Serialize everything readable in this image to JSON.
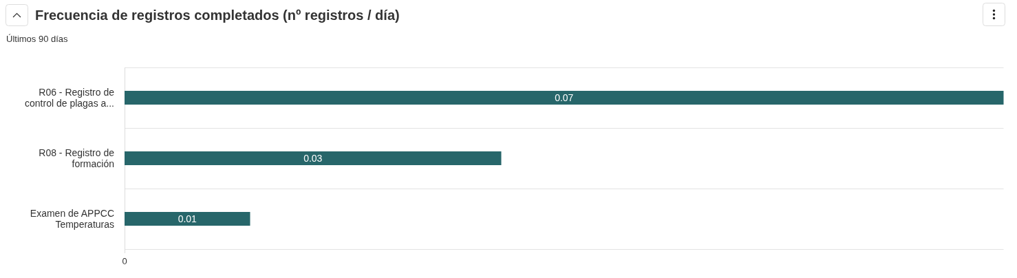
{
  "chart_data": {
    "type": "bar",
    "title": "Frecuencia de registros completados (nº registros / día)",
    "subtitle": "Últimos 90 días",
    "orientation": "horizontal",
    "categories": [
      "R06 - Registro de control de plagas a...",
      "R08 - Registro de formación",
      "Examen de APPCC Temperaturas"
    ],
    "values": [
      0.07,
      0.03,
      0.01
    ],
    "color": "#27666a",
    "grid": "y",
    "data_labels": true,
    "annotations": [
      "0"
    ]
  }
}
